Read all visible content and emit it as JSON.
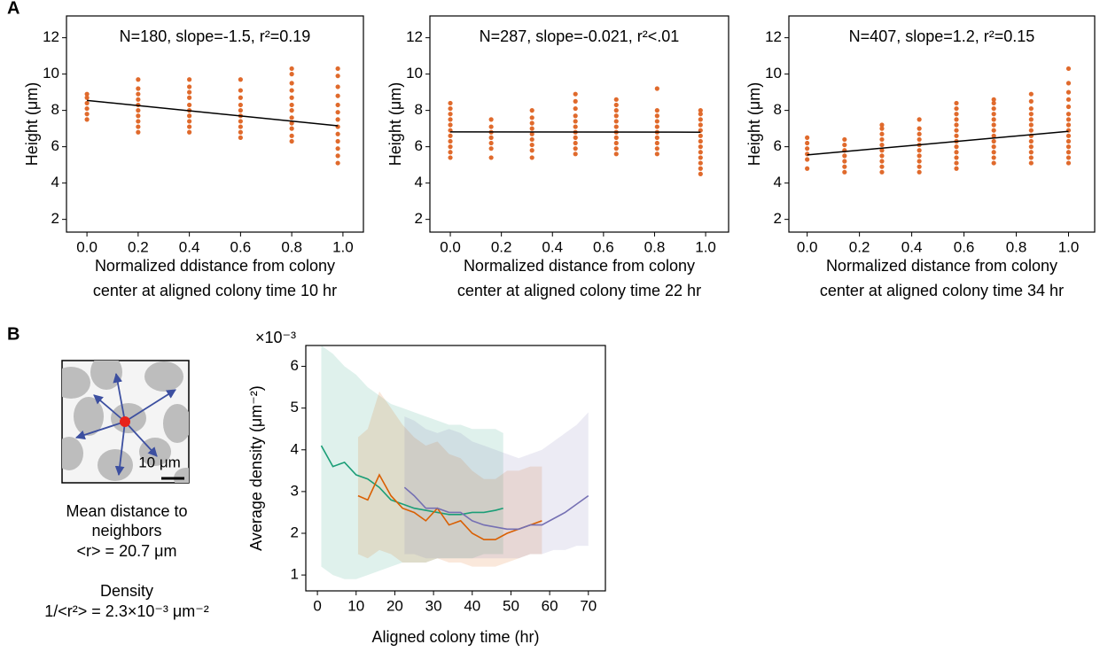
{
  "panel_labels": [
    "A",
    "B"
  ],
  "chart_data": [
    {
      "type": "scatter",
      "annotation": "N=180, slope=-1.5, r²=0.19",
      "ylabel": "Height (μm)",
      "xlabel": [
        "Normalized ddistance from colony",
        "center at aligned colony time 10 hr"
      ],
      "color": "#e06a2c",
      "fit_color": "#000000",
      "xlim": [
        -0.08,
        1.08
      ],
      "ylim": [
        1.3,
        13.2
      ],
      "xticks": [
        {
          "value": 0,
          "label": "0.0"
        },
        0.2,
        0.4,
        0.6,
        0.8,
        {
          "value": 1,
          "label": "1.0"
        }
      ],
      "yticks": [
        2,
        4,
        6,
        8,
        10,
        12
      ],
      "groups": [
        {
          "x": 0,
          "y": [
            7.5,
            7.8,
            8.1,
            8.4,
            8.7,
            8.9
          ]
        },
        {
          "x": 0.2,
          "y": [
            6.8,
            7.1,
            7.4,
            7.7,
            8.0,
            8.3,
            8.6,
            8.9,
            9.2,
            9.7
          ]
        },
        {
          "x": 0.4,
          "y": [
            6.8,
            7.1,
            7.4,
            7.7,
            8.0,
            8.3,
            8.7,
            9.0,
            9.3,
            9.7
          ]
        },
        {
          "x": 0.6,
          "y": [
            6.5,
            6.8,
            7.1,
            7.4,
            7.7,
            8.0,
            8.3,
            8.7,
            9.1,
            9.7
          ]
        },
        {
          "x": 0.8,
          "y": [
            6.3,
            6.6,
            7.0,
            7.3,
            7.6,
            8.0,
            8.3,
            8.7,
            9.1,
            9.5,
            10.0,
            10.3
          ]
        },
        {
          "x": 0.98,
          "y": [
            5.1,
            5.5,
            5.9,
            6.3,
            6.7,
            7.1,
            7.5,
            7.9,
            8.3,
            8.8,
            9.3,
            9.9,
            10.3
          ]
        }
      ],
      "fit": {
        "x": [
          0,
          0.98
        ],
        "y": [
          8.55,
          7.15
        ]
      }
    },
    {
      "type": "scatter",
      "annotation": "N=287, slope=-0.021, r²<.01",
      "ylabel": "Height (μm)",
      "xlabel": [
        "Normalized distance from colony",
        "center at aligned colony time 22 hr"
      ],
      "color": "#e06a2c",
      "fit_color": "#000000",
      "xlim": [
        -0.08,
        1.09
      ],
      "ylim": [
        1.3,
        13.2
      ],
      "xticks": [
        {
          "value": 0,
          "label": "0.0"
        },
        0.2,
        0.4,
        0.6,
        0.8,
        {
          "value": 1,
          "label": "1.0"
        }
      ],
      "yticks": [
        2,
        4,
        6,
        8,
        10,
        12
      ],
      "groups": [
        {
          "x": 0,
          "y": [
            5.4,
            5.7,
            6.0,
            6.3,
            6.6,
            6.9,
            7.2,
            7.5,
            7.8,
            8.1,
            8.4
          ]
        },
        {
          "x": 0.16,
          "y": [
            5.4,
            5.9,
            6.2,
            6.5,
            6.8,
            7.1,
            7.5
          ]
        },
        {
          "x": 0.32,
          "y": [
            5.4,
            5.8,
            6.1,
            6.4,
            6.7,
            7.0,
            7.3,
            7.6,
            8.0
          ]
        },
        {
          "x": 0.49,
          "y": [
            5.6,
            5.9,
            6.2,
            6.5,
            6.8,
            7.1,
            7.4,
            7.7,
            8.1,
            8.5,
            8.9
          ]
        },
        {
          "x": 0.65,
          "y": [
            5.6,
            5.9,
            6.2,
            6.5,
            6.8,
            7.1,
            7.4,
            7.7,
            8.0,
            8.3,
            8.6
          ]
        },
        {
          "x": 0.81,
          "y": [
            5.6,
            5.9,
            6.2,
            6.5,
            6.8,
            7.1,
            7.4,
            7.7,
            8.0,
            9.2
          ]
        },
        {
          "x": 0.98,
          "y": [
            4.5,
            4.8,
            5.1,
            5.4,
            5.7,
            6.0,
            6.3,
            6.6,
            6.9,
            7.2,
            7.5,
            7.8,
            8.0
          ]
        }
      ],
      "fit": {
        "x": [
          0,
          0.98
        ],
        "y": [
          6.82,
          6.8
        ]
      }
    },
    {
      "type": "scatter",
      "annotation": "N=407, slope=1.2, r²=0.15",
      "ylabel": "Height (μm)",
      "xlabel": [
        "Normalized distance from colony",
        "center at aligned colony time 34 hr"
      ],
      "color": "#e06a2c",
      "fit_color": "#000000",
      "xlim": [
        -0.07,
        1.1
      ],
      "ylim": [
        1.3,
        13.2
      ],
      "xticks": [
        {
          "value": 0,
          "label": "0.0"
        },
        0.2,
        0.4,
        0.6,
        0.8,
        {
          "value": 1,
          "label": "1.0"
        }
      ],
      "yticks": [
        2,
        4,
        6,
        8,
        10,
        12
      ],
      "groups": [
        {
          "x": 0,
          "y": [
            4.8,
            5.3,
            5.6,
            5.9,
            6.2,
            6.5
          ]
        },
        {
          "x": 0.143,
          "y": [
            4.6,
            4.9,
            5.2,
            5.5,
            5.8,
            6.1,
            6.4
          ]
        },
        {
          "x": 0.286,
          "y": [
            4.6,
            4.9,
            5.2,
            5.5,
            5.8,
            6.1,
            6.4,
            6.7,
            7.0,
            7.2
          ]
        },
        {
          "x": 0.429,
          "y": [
            4.6,
            4.9,
            5.2,
            5.5,
            5.8,
            6.1,
            6.4,
            6.7,
            7.0,
            7.5
          ]
        },
        {
          "x": 0.571,
          "y": [
            4.8,
            5.1,
            5.4,
            5.7,
            6.0,
            6.3,
            6.6,
            6.9,
            7.2,
            7.5,
            7.8,
            8.1,
            8.4
          ]
        },
        {
          "x": 0.714,
          "y": [
            5.1,
            5.4,
            5.7,
            6.0,
            6.3,
            6.6,
            6.9,
            7.2,
            7.5,
            7.8,
            8.1,
            8.4,
            8.6
          ]
        },
        {
          "x": 0.857,
          "y": [
            5.1,
            5.4,
            5.7,
            6.0,
            6.3,
            6.6,
            6.9,
            7.2,
            7.5,
            7.8,
            8.1,
            8.5,
            8.9
          ]
        },
        {
          "x": 1.0,
          "y": [
            5.1,
            5.4,
            5.7,
            6.0,
            6.3,
            6.6,
            6.9,
            7.2,
            7.5,
            7.8,
            8.2,
            8.6,
            9.0,
            9.5,
            10.3
          ]
        }
      ],
      "fit": {
        "x": [
          0,
          1.0
        ],
        "y": [
          5.55,
          6.85
        ]
      }
    },
    {
      "type": "line",
      "ylabel": "Average density (μm⁻²)",
      "xlabel": "Aligned colony time (hr)",
      "y_multiplier": "×10⁻³",
      "xlim": [
        -3,
        74.4
      ],
      "ylim": [
        0.62,
        6.5
      ],
      "xticks": [
        0,
        10,
        20,
        30,
        40,
        50,
        60,
        70
      ],
      "yticks": [
        1,
        2,
        3,
        4,
        5,
        6
      ],
      "series": [
        {
          "color": "#1b9e77",
          "x": [
            1,
            4,
            7,
            10,
            13,
            16,
            19,
            22,
            25,
            28,
            31,
            34,
            37,
            40,
            43,
            46,
            48
          ],
          "values": [
            4.1,
            3.6,
            3.7,
            3.4,
            3.3,
            3.1,
            2.8,
            2.7,
            2.6,
            2.55,
            2.5,
            2.45,
            2.45,
            2.5,
            2.5,
            2.55,
            2.6
          ],
          "upper": [
            6.5,
            6.3,
            6.0,
            5.8,
            5.5,
            5.3,
            5.1,
            5.0,
            4.9,
            4.8,
            4.7,
            4.6,
            4.6,
            4.5,
            4.5,
            4.5,
            4.4
          ],
          "lower": [
            1.2,
            1.0,
            0.9,
            0.9,
            1.0,
            1.1,
            1.2,
            1.3,
            1.3,
            1.3,
            1.4,
            1.4,
            1.4,
            1.4,
            1.5,
            1.5,
            1.5
          ]
        },
        {
          "color": "#d95f02",
          "x": [
            10.5,
            13,
            16,
            19,
            22,
            25,
            28,
            31,
            34,
            37,
            40,
            43,
            46,
            49,
            52,
            55,
            58
          ],
          "values": [
            2.9,
            2.8,
            3.4,
            2.9,
            2.6,
            2.5,
            2.3,
            2.6,
            2.2,
            2.3,
            2.0,
            1.85,
            1.85,
            2.0,
            2.1,
            2.2,
            2.3
          ],
          "upper": [
            4.3,
            4.5,
            5.4,
            5.0,
            4.6,
            4.3,
            4.1,
            4.2,
            3.9,
            3.8,
            3.5,
            3.3,
            3.3,
            3.5,
            3.5,
            3.6,
            3.6
          ],
          "lower": [
            1.5,
            1.4,
            1.6,
            1.5,
            1.3,
            1.3,
            1.3,
            1.4,
            1.3,
            1.3,
            1.2,
            1.2,
            1.2,
            1.3,
            1.4,
            1.5,
            1.5
          ]
        },
        {
          "color": "#7570b3",
          "x": [
            22.5,
            25,
            28,
            31,
            34,
            37,
            40,
            43,
            46,
            49,
            52,
            55,
            58,
            61,
            64,
            67,
            70
          ],
          "values": [
            3.1,
            2.9,
            2.6,
            2.6,
            2.5,
            2.5,
            2.3,
            2.2,
            2.15,
            2.1,
            2.1,
            2.2,
            2.2,
            2.35,
            2.5,
            2.7,
            2.9
          ],
          "upper": [
            4.8,
            4.7,
            4.5,
            4.4,
            4.5,
            4.4,
            4.2,
            4.1,
            4.0,
            3.9,
            3.8,
            3.9,
            4.0,
            4.2,
            4.4,
            4.6,
            4.9
          ],
          "lower": [
            1.5,
            1.5,
            1.4,
            1.4,
            1.4,
            1.4,
            1.4,
            1.4,
            1.4,
            1.4,
            1.4,
            1.5,
            1.5,
            1.6,
            1.6,
            1.7,
            1.7
          ]
        }
      ]
    }
  ],
  "diagram": {
    "scale_bar": "10 μm",
    "caption_lines": [
      "Mean distance to",
      "neighbors",
      "<r> = 20.7 μm"
    ],
    "density_lines": [
      "Density",
      "1/<r²> = 2.3×10⁻³ μm⁻²"
    ]
  }
}
